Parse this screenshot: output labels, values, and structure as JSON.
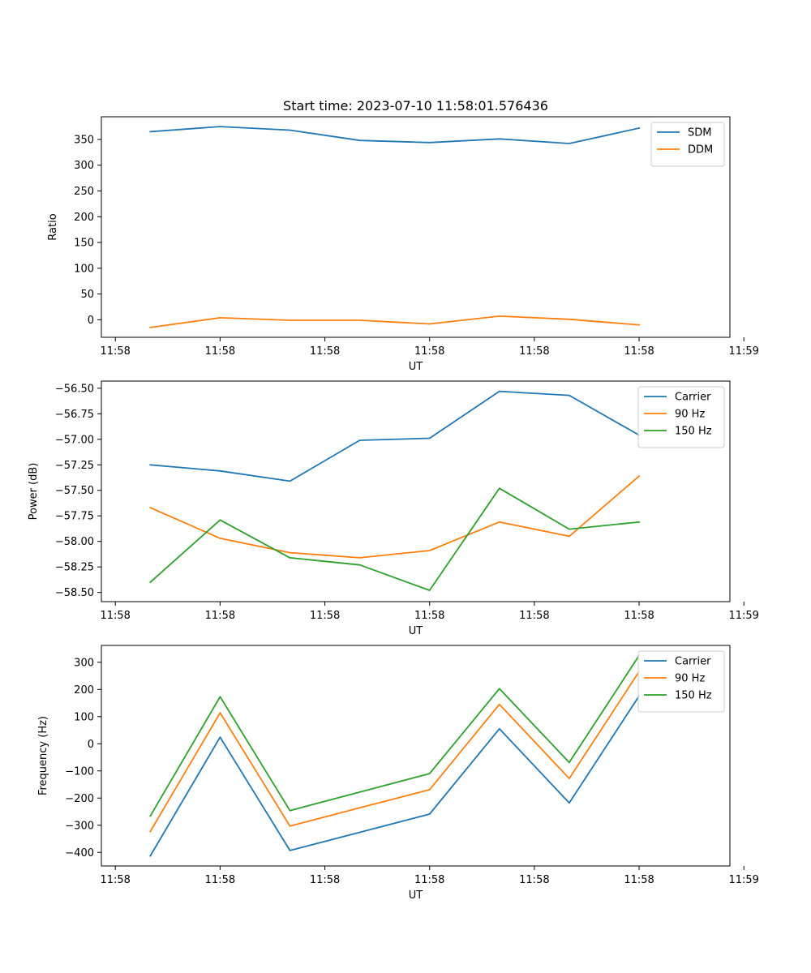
{
  "chart_data": [
    {
      "type": "line",
      "title": "Start time: 2023-07-10 11:58:01.576436",
      "xlabel": "UT",
      "ylabel": "Ratio",
      "x": [
        0,
        1,
        2,
        3,
        4,
        5,
        6,
        7
      ],
      "xlim": [
        -0.7,
        8.3
      ],
      "x_ticks": [
        {
          "at": -0.5,
          "label": "11:58"
        },
        {
          "at": 1.0,
          "label": "11:58"
        },
        {
          "at": 2.5,
          "label": "11:58"
        },
        {
          "at": 4.0,
          "label": "11:58"
        },
        {
          "at": 5.5,
          "label": "11:58"
        },
        {
          "at": 7.0,
          "label": "11:58"
        },
        {
          "at": 8.5,
          "label": "11:59"
        }
      ],
      "ylim": [
        -34,
        394
      ],
      "y_ticks": [
        {
          "at": 0,
          "label": "0"
        },
        {
          "at": 50,
          "label": "50"
        },
        {
          "at": 100,
          "label": "100"
        },
        {
          "at": 150,
          "label": "150"
        },
        {
          "at": 200,
          "label": "200"
        },
        {
          "at": 250,
          "label": "250"
        },
        {
          "at": 300,
          "label": "300"
        },
        {
          "at": 350,
          "label": "350"
        }
      ],
      "legend_position": "top-right",
      "series": [
        {
          "name": "SDM",
          "color": "#1f77b4",
          "values": [
            365,
            375,
            368,
            348,
            344,
            351,
            342,
            372
          ]
        },
        {
          "name": "DDM",
          "color": "#ff7f0e",
          "values": [
            -15,
            4,
            -1,
            -1,
            -8,
            7,
            1,
            -10
          ]
        }
      ]
    },
    {
      "type": "line",
      "title": "",
      "xlabel": "UT",
      "ylabel": "Power (dB)",
      "x": [
        0,
        1,
        2,
        3,
        4,
        5,
        6,
        7
      ],
      "xlim": [
        -0.7,
        8.3
      ],
      "x_ticks": [
        {
          "at": -0.5,
          "label": "11:58"
        },
        {
          "at": 1.0,
          "label": "11:58"
        },
        {
          "at": 2.5,
          "label": "11:58"
        },
        {
          "at": 4.0,
          "label": "11:58"
        },
        {
          "at": 5.5,
          "label": "11:58"
        },
        {
          "at": 7.0,
          "label": "11:58"
        },
        {
          "at": 8.5,
          "label": "11:59"
        }
      ],
      "ylim": [
        -58.59,
        -56.43
      ],
      "y_ticks": [
        {
          "at": -58.5,
          "label": "−58.50"
        },
        {
          "at": -58.25,
          "label": "−58.25"
        },
        {
          "at": -58.0,
          "label": "−58.00"
        },
        {
          "at": -57.75,
          "label": "−57.75"
        },
        {
          "at": -57.5,
          "label": "−57.50"
        },
        {
          "at": -57.25,
          "label": "−57.25"
        },
        {
          "at": -57.0,
          "label": "−57.00"
        },
        {
          "at": -56.75,
          "label": "−56.75"
        },
        {
          "at": -56.5,
          "label": "−56.50"
        }
      ],
      "legend_position": "top-right",
      "series": [
        {
          "name": "Carrier",
          "color": "#1f77b4",
          "values": [
            -57.25,
            -57.31,
            -57.41,
            -57.01,
            -56.99,
            -56.53,
            -56.57,
            -56.96
          ]
        },
        {
          "name": "90 Hz",
          "color": "#ff7f0e",
          "values": [
            -57.67,
            -57.97,
            -58.11,
            -58.16,
            -58.09,
            -57.81,
            -57.95,
            -57.36
          ]
        },
        {
          "name": "150 Hz",
          "color": "#2ca02c",
          "values": [
            -58.4,
            -57.79,
            -58.16,
            -58.23,
            -58.48,
            -57.48,
            -57.88,
            -57.81
          ]
        }
      ]
    },
    {
      "type": "line",
      "title": "",
      "xlabel": "UT",
      "ylabel": "Frequency (Hz)",
      "x": [
        0,
        1,
        2,
        3,
        4,
        5,
        6,
        7
      ],
      "xlim": [
        -0.7,
        8.3
      ],
      "x_ticks": [
        {
          "at": -0.5,
          "label": "11:58"
        },
        {
          "at": 1.0,
          "label": "11:58"
        },
        {
          "at": 2.5,
          "label": "11:58"
        },
        {
          "at": 4.0,
          "label": "11:58"
        },
        {
          "at": 5.5,
          "label": "11:58"
        },
        {
          "at": 7.0,
          "label": "11:58"
        },
        {
          "at": 8.5,
          "label": "11:59"
        }
      ],
      "ylim": [
        -450,
        362
      ],
      "y_ticks": [
        {
          "at": -400,
          "label": "−400"
        },
        {
          "at": -300,
          "label": "−300"
        },
        {
          "at": -200,
          "label": "−200"
        },
        {
          "at": -100,
          "label": "−100"
        },
        {
          "at": 0,
          "label": "0"
        },
        {
          "at": 100,
          "label": "100"
        },
        {
          "at": 200,
          "label": "200"
        },
        {
          "at": 300,
          "label": "300"
        }
      ],
      "legend_position": "top-right",
      "series": [
        {
          "name": "Carrier",
          "color": "#1f77b4",
          "values": [
            -413,
            24,
            -393,
            -326,
            -259,
            55,
            -218,
            176
          ]
        },
        {
          "name": "90 Hz",
          "color": "#ff7f0e",
          "values": [
            -323,
            114,
            -303,
            -236,
            -169,
            145,
            -128,
            266
          ]
        },
        {
          "name": "150 Hz",
          "color": "#2ca02c",
          "values": [
            -266,
            173,
            -246,
            -178,
            -110,
            203,
            -69,
            325
          ]
        }
      ]
    }
  ]
}
